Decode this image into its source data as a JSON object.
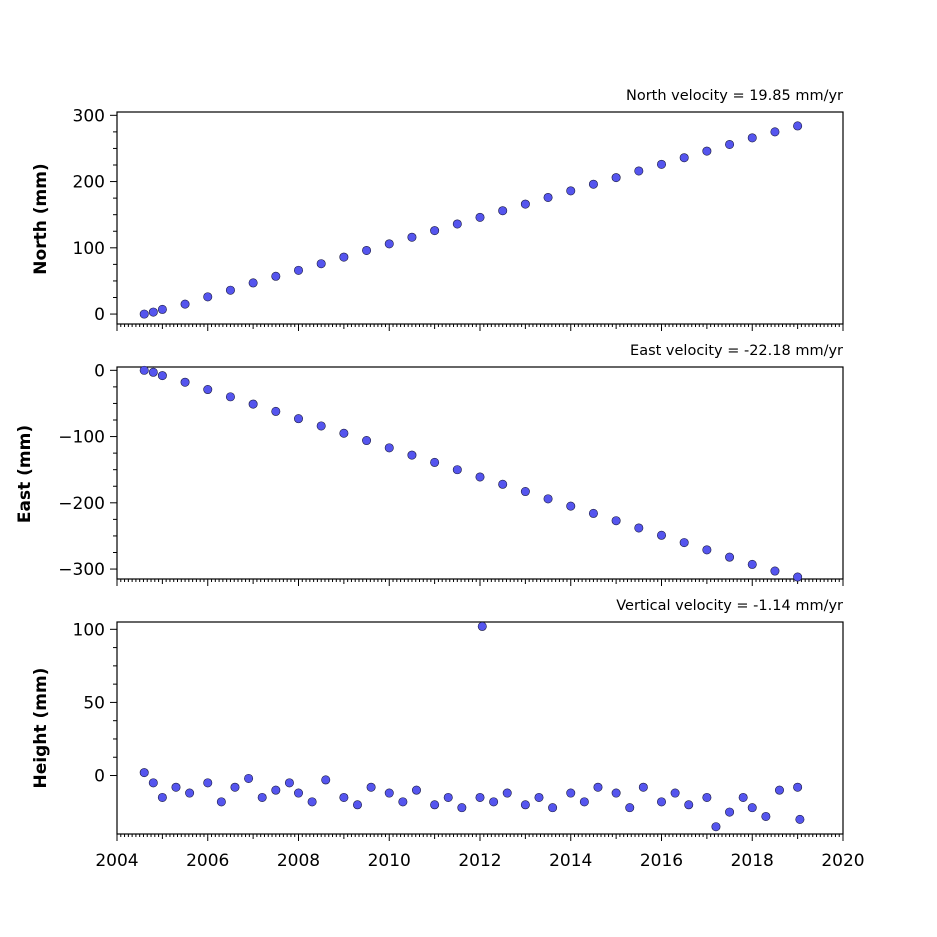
{
  "chart_data": [
    {
      "type": "scatter",
      "title": "North velocity = 19.85 mm/yr",
      "xlabel": "",
      "ylabel": "North (mm)",
      "xlim": [
        2004,
        2020
      ],
      "ylim": [
        -15,
        305
      ],
      "yticks": [
        0,
        100,
        200,
        300
      ],
      "ytick_labels": [
        "0",
        "100",
        "200",
        "300"
      ],
      "series": [
        {
          "points": [
            [
              2004.6,
              0
            ],
            [
              2004.8,
              3
            ],
            [
              2005.0,
              7
            ],
            [
              2005.5,
              15
            ],
            [
              2006.0,
              26
            ],
            [
              2006.5,
              36
            ],
            [
              2007.0,
              47
            ],
            [
              2007.5,
              57
            ],
            [
              2008.0,
              66
            ],
            [
              2008.5,
              76
            ],
            [
              2009.0,
              86
            ],
            [
              2009.5,
              96
            ],
            [
              2010.0,
              106
            ],
            [
              2010.5,
              116
            ],
            [
              2011.0,
              126
            ],
            [
              2011.5,
              136
            ],
            [
              2012.0,
              146
            ],
            [
              2012.5,
              156
            ],
            [
              2013.0,
              166
            ],
            [
              2013.5,
              176
            ],
            [
              2014.0,
              186
            ],
            [
              2014.5,
              196
            ],
            [
              2015.0,
              206
            ],
            [
              2015.5,
              216
            ],
            [
              2016.0,
              226
            ],
            [
              2016.5,
              236
            ],
            [
              2017.0,
              246
            ],
            [
              2017.5,
              256
            ],
            [
              2018.0,
              266
            ],
            [
              2018.5,
              275
            ],
            [
              2019.0,
              284
            ]
          ]
        }
      ]
    },
    {
      "type": "scatter",
      "title": "East velocity = -22.18 mm/yr",
      "xlabel": "",
      "ylabel": "East (mm)",
      "xlim": [
        2004,
        2020
      ],
      "ylim": [
        -315,
        5
      ],
      "yticks": [
        0,
        -100,
        -200,
        -300
      ],
      "ytick_labels": [
        "0",
        "−100",
        "−200",
        "−300"
      ],
      "series": [
        {
          "points": [
            [
              2004.6,
              0
            ],
            [
              2004.8,
              -3
            ],
            [
              2005.0,
              -8
            ],
            [
              2005.5,
              -18
            ],
            [
              2006.0,
              -29
            ],
            [
              2006.5,
              -40
            ],
            [
              2007.0,
              -51
            ],
            [
              2007.5,
              -62
            ],
            [
              2008.0,
              -73
            ],
            [
              2008.5,
              -84
            ],
            [
              2009.0,
              -95
            ],
            [
              2009.5,
              -106
            ],
            [
              2010.0,
              -117
            ],
            [
              2010.5,
              -128
            ],
            [
              2011.0,
              -139
            ],
            [
              2011.5,
              -150
            ],
            [
              2012.0,
              -161
            ],
            [
              2012.5,
              -172
            ],
            [
              2013.0,
              -183
            ],
            [
              2013.5,
              -194
            ],
            [
              2014.0,
              -205
            ],
            [
              2014.5,
              -216
            ],
            [
              2015.0,
              -227
            ],
            [
              2015.5,
              -238
            ],
            [
              2016.0,
              -249
            ],
            [
              2016.5,
              -260
            ],
            [
              2017.0,
              -271
            ],
            [
              2017.5,
              -282
            ],
            [
              2018.0,
              -293
            ],
            [
              2018.5,
              -303
            ],
            [
              2019.0,
              -312
            ]
          ]
        }
      ]
    },
    {
      "type": "scatter",
      "title": "Vertical velocity = -1.14 mm/yr",
      "xlabel": "",
      "ylabel": "Height (mm)",
      "xlim": [
        2004,
        2020
      ],
      "ylim": [
        -40,
        105
      ],
      "yticks": [
        0,
        50,
        100
      ],
      "ytick_labels": [
        "0",
        "50",
        "100"
      ],
      "xticks": [
        2004,
        2006,
        2008,
        2010,
        2012,
        2014,
        2016,
        2018,
        2020
      ],
      "xtick_labels": [
        "2004",
        "2006",
        "2008",
        "2010",
        "2012",
        "2014",
        "2016",
        "2018",
        "2020"
      ],
      "series": [
        {
          "points": [
            [
              2004.6,
              2
            ],
            [
              2004.8,
              -5
            ],
            [
              2005.0,
              -15
            ],
            [
              2005.3,
              -8
            ],
            [
              2005.6,
              -12
            ],
            [
              2006.0,
              -5
            ],
            [
              2006.3,
              -18
            ],
            [
              2006.6,
              -8
            ],
            [
              2006.9,
              -2
            ],
            [
              2007.2,
              -15
            ],
            [
              2007.5,
              -10
            ],
            [
              2007.8,
              -5
            ],
            [
              2008.0,
              -12
            ],
            [
              2008.3,
              -18
            ],
            [
              2008.6,
              -3
            ],
            [
              2009.0,
              -15
            ],
            [
              2009.3,
              -20
            ],
            [
              2009.6,
              -8
            ],
            [
              2010.0,
              -12
            ],
            [
              2010.3,
              -18
            ],
            [
              2010.6,
              -10
            ],
            [
              2011.0,
              -20
            ],
            [
              2011.3,
              -15
            ],
            [
              2011.6,
              -22
            ],
            [
              2012.0,
              -15
            ],
            [
              2012.05,
              102
            ],
            [
              2012.3,
              -18
            ],
            [
              2012.6,
              -12
            ],
            [
              2013.0,
              -20
            ],
            [
              2013.3,
              -15
            ],
            [
              2013.6,
              -22
            ],
            [
              2014.0,
              -12
            ],
            [
              2014.3,
              -18
            ],
            [
              2014.6,
              -8
            ],
            [
              2015.0,
              -12
            ],
            [
              2015.3,
              -22
            ],
            [
              2015.6,
              -8
            ],
            [
              2016.0,
              -18
            ],
            [
              2016.3,
              -12
            ],
            [
              2016.6,
              -20
            ],
            [
              2017.0,
              -15
            ],
            [
              2017.2,
              -35
            ],
            [
              2017.5,
              -25
            ],
            [
              2017.8,
              -15
            ],
            [
              2018.0,
              -22
            ],
            [
              2018.3,
              -28
            ],
            [
              2018.6,
              -10
            ],
            [
              2019.0,
              -8
            ],
            [
              2019.05,
              -30
            ]
          ]
        }
      ]
    }
  ]
}
